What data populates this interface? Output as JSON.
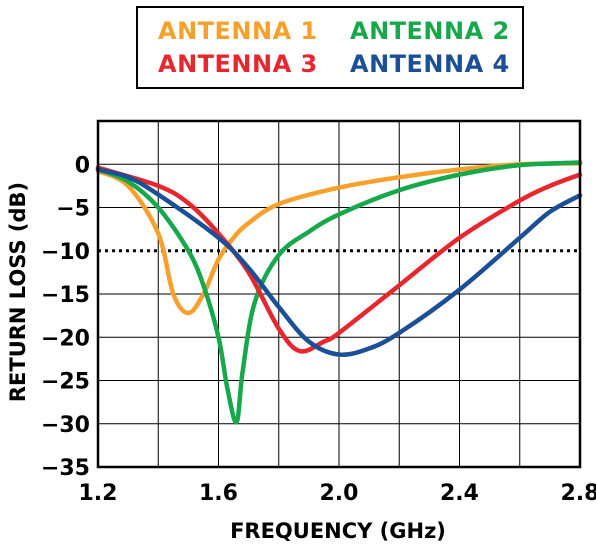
{
  "chart_data": {
    "type": "line",
    "xlabel": "FREQUENCY (GHz)",
    "ylabel": "RETURN LOSS (dB)",
    "xlim": [
      1.2,
      2.8
    ],
    "ylim": [
      -35,
      5
    ],
    "xticks": [
      1.2,
      1.6,
      2.0,
      2.4,
      2.8
    ],
    "xtick_labels": [
      "1.2",
      "1.6",
      "2.0",
      "2.4",
      "2.8"
    ],
    "yticks": [
      0,
      -5,
      -10,
      -15,
      -20,
      -25,
      -30,
      -35
    ],
    "ytick_labels": [
      "0",
      "−5",
      "−10",
      "−15",
      "−20",
      "−25",
      "−30",
      "−35"
    ],
    "grid": true,
    "legend_position": "top",
    "reference_line": {
      "y": -10,
      "style": "dotted",
      "color": "#000000"
    },
    "series": [
      {
        "name": "ANTENNA 1",
        "color": "#f7a02b",
        "x": [
          1.2,
          1.3,
          1.4,
          1.45,
          1.5,
          1.55,
          1.6,
          1.65,
          1.7,
          1.8,
          2.0,
          2.2,
          2.4,
          2.6,
          2.8
        ],
        "y": [
          -0.8,
          -2.5,
          -8,
          -15,
          -17.2,
          -15,
          -11,
          -8.5,
          -6.8,
          -4.6,
          -2.7,
          -1.5,
          -0.6,
          0,
          0.1
        ]
      },
      {
        "name": "ANTENNA 2",
        "color": "#17a84b",
        "x": [
          1.2,
          1.3,
          1.4,
          1.5,
          1.55,
          1.6,
          1.63,
          1.66,
          1.68,
          1.72,
          1.8,
          1.9,
          2.0,
          2.2,
          2.4,
          2.6,
          2.8
        ],
        "y": [
          -0.6,
          -2,
          -5,
          -10,
          -14,
          -20,
          -26,
          -29.8,
          -24,
          -16,
          -10.5,
          -7.8,
          -5.8,
          -3,
          -1.2,
          -0.1,
          0.2
        ]
      },
      {
        "name": "ANTENNA 3",
        "color": "#e8262d",
        "x": [
          1.2,
          1.4,
          1.5,
          1.6,
          1.7,
          1.8,
          1.87,
          1.95,
          2.0,
          2.2,
          2.4,
          2.6,
          2.7,
          2.8
        ],
        "y": [
          -0.4,
          -2.5,
          -4.5,
          -8,
          -12.5,
          -19,
          -21.6,
          -20.5,
          -19.5,
          -14,
          -8.5,
          -4.2,
          -2.5,
          -1.2
        ]
      },
      {
        "name": "ANTENNA 4",
        "color": "#1b4f96",
        "x": [
          1.2,
          1.3,
          1.4,
          1.6,
          1.7,
          1.8,
          1.9,
          2.0,
          2.1,
          2.2,
          2.4,
          2.6,
          2.7,
          2.8
        ],
        "y": [
          -0.6,
          -1.5,
          -3.5,
          -8.5,
          -12,
          -16.5,
          -20.5,
          -22,
          -21.3,
          -19.5,
          -14.5,
          -8.5,
          -5.5,
          -3.6
        ]
      }
    ]
  }
}
